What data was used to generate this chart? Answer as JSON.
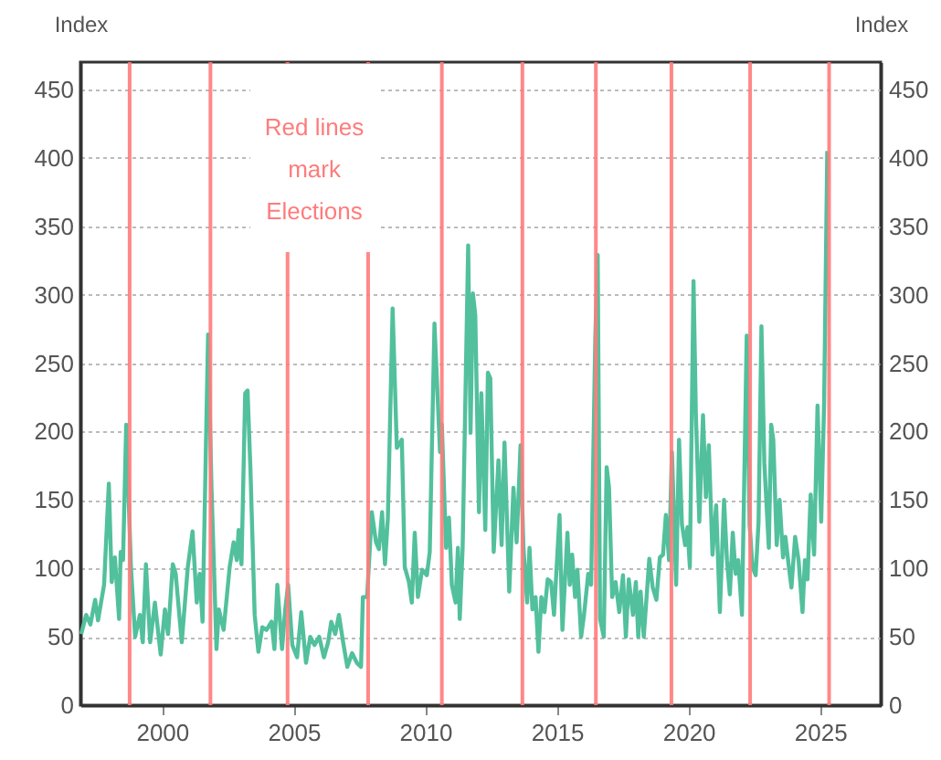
{
  "chart_data": {
    "type": "line",
    "ylabel": "Index",
    "y2label": "Index",
    "annotations": [
      "Red lines\nmark\nElections"
    ],
    "xlim": [
      1996.9,
      2027.3
    ],
    "xticks": [
      2000,
      2005,
      2010,
      2015,
      2020,
      2025
    ],
    "ylim": [
      0,
      470
    ],
    "yticks": [
      0,
      50,
      100,
      150,
      200,
      250,
      300,
      350,
      400,
      450
    ],
    "y2lim": [
      0,
      470
    ],
    "y2ticks": [
      0,
      50,
      100,
      150,
      200,
      250,
      300,
      350,
      400,
      450
    ],
    "grid": "y",
    "ref_lines": [
      {
        "axis": "x",
        "value": 1998.77,
        "color": "#ff7b7b"
      },
      {
        "axis": "x",
        "value": 2001.84,
        "color": "#ff7b7b"
      },
      {
        "axis": "x",
        "value": 2004.77,
        "color": "#ff7b7b"
      },
      {
        "axis": "x",
        "value": 2007.83,
        "color": "#ff7b7b"
      },
      {
        "axis": "x",
        "value": 2010.63,
        "color": "#ff7b7b"
      },
      {
        "axis": "x",
        "value": 2013.69,
        "color": "#ff7b7b"
      },
      {
        "axis": "x",
        "value": 2016.48,
        "color": "#ff7b7b"
      },
      {
        "axis": "x",
        "value": 2019.35,
        "color": "#ff7b7b"
      },
      {
        "axis": "x",
        "value": 2022.34,
        "color": "#ff7b7b"
      },
      {
        "axis": "x",
        "value": 2025.34,
        "color": "#ff7b7b"
      }
    ],
    "series": [
      {
        "color": "#52c09c",
        "x": [
          1996.93,
          1997.12,
          1997.28,
          1997.46,
          1997.57,
          1997.8,
          1997.98,
          1998.09,
          1998.21,
          1998.37,
          1998.43,
          1998.52,
          1998.64,
          1998.82,
          1998.98,
          1999.16,
          1999.27,
          1999.39,
          1999.55,
          1999.73,
          1999.95,
          2000.11,
          2000.23,
          2000.41,
          2000.52,
          2000.75,
          2000.98,
          2001.16,
          2001.32,
          2001.43,
          2001.54,
          2001.75,
          2001.88,
          2002.07,
          2002.16,
          2002.34,
          2002.57,
          2002.72,
          2002.84,
          2002.91,
          2003.02,
          2003.16,
          2003.25,
          2003.36,
          2003.52,
          2003.66,
          2003.81,
          2003.97,
          2004.16,
          2004.27,
          2004.38,
          2004.56,
          2004.68,
          2004.79,
          2004.95,
          2005.13,
          2005.29,
          2005.47,
          2005.63,
          2005.79,
          2005.97,
          2006.15,
          2006.31,
          2006.43,
          2006.58,
          2006.72,
          2006.88,
          2007.04,
          2007.22,
          2007.4,
          2007.56,
          2007.63,
          2007.79,
          2007.97,
          2008.13,
          2008.24,
          2008.36,
          2008.47,
          2008.58,
          2008.76,
          2008.92,
          2009.11,
          2009.22,
          2009.38,
          2009.49,
          2009.6,
          2009.72,
          2009.88,
          2010.06,
          2010.17,
          2010.35,
          2010.56,
          2010.63,
          2010.79,
          2010.9,
          2011.01,
          2011.15,
          2011.24,
          2011.31,
          2011.42,
          2011.63,
          2011.72,
          2011.81,
          2011.9,
          2012.04,
          2012.13,
          2012.28,
          2012.38,
          2012.47,
          2012.6,
          2012.78,
          2012.9,
          2013.01,
          2013.19,
          2013.35,
          2013.47,
          2013.62,
          2013.73,
          2013.87,
          2013.96,
          2014.07,
          2014.19,
          2014.3,
          2014.41,
          2014.53,
          2014.65,
          2014.78,
          2014.89,
          2015.1,
          2015.21,
          2015.4,
          2015.49,
          2015.58,
          2015.69,
          2015.78,
          2015.92,
          2016.03,
          2016.19,
          2016.3,
          2016.46,
          2016.55,
          2016.64,
          2016.78,
          2016.89,
          2016.98,
          2017.1,
          2017.23,
          2017.37,
          2017.51,
          2017.62,
          2017.73,
          2017.89,
          2018.0,
          2018.09,
          2018.18,
          2018.3,
          2018.51,
          2018.64,
          2018.78,
          2018.91,
          2019.03,
          2019.14,
          2019.26,
          2019.37,
          2019.53,
          2019.64,
          2019.75,
          2019.87,
          2019.96,
          2020.05,
          2020.19,
          2020.28,
          2020.41,
          2020.55,
          2020.66,
          2020.77,
          2020.91,
          2021.05,
          2021.19,
          2021.35,
          2021.46,
          2021.57,
          2021.68,
          2021.79,
          2021.89,
          2022.03,
          2022.21,
          2022.32,
          2022.43,
          2022.55,
          2022.66,
          2022.77,
          2022.88,
          2023.05,
          2023.14,
          2023.22,
          2023.35,
          2023.46,
          2023.59,
          2023.68,
          2023.8,
          2023.91,
          2024.05,
          2024.18,
          2024.33,
          2024.42,
          2024.52,
          2024.64,
          2024.77,
          2024.9,
          2025.04,
          2025.15,
          2025.27
        ],
        "values": [
          52,
          66,
          59,
          77,
          62,
          88,
          162,
          90,
          108,
          63,
          112,
          106,
          205,
          101,
          50,
          66,
          46,
          103,
          46,
          75,
          37,
          70,
          52,
          103,
          96,
          46,
          101,
          127,
          75,
          96,
          61,
          271,
          159,
          41,
          70,
          55,
          101,
          119,
          106,
          128,
          103,
          228,
          230,
          172,
          66,
          39,
          57,
          55,
          61,
          41,
          88,
          41,
          70,
          88,
          44,
          35,
          68,
          31,
          50,
          44,
          50,
          35,
          46,
          61,
          52,
          66,
          46,
          28,
          38,
          31,
          28,
          79,
          79,
          141,
          119,
          114,
          141,
          103,
          137,
          290,
          188,
          194,
          101,
          90,
          75,
          126,
          79,
          99,
          95,
          112,
          279,
          185,
          205,
          115,
          137,
          88,
          75,
          115,
          63,
          115,
          336,
          199,
          301,
          285,
          141,
          228,
          128,
          243,
          239,
          112,
          179,
          117,
          192,
          83,
          159,
          119,
          190,
          115,
          75,
          115,
          70,
          79,
          39,
          79,
          68,
          92,
          90,
          66,
          139,
          55,
          126,
          88,
          110,
          79,
          99,
          50,
          66,
          96,
          88,
          270,
          329,
          63,
          50,
          174,
          159,
          79,
          90,
          68,
          95,
          50,
          92,
          66,
          90,
          50,
          83,
          50,
          107,
          86,
          77,
          108,
          110,
          139,
          106,
          185,
          88,
          194,
          132,
          117,
          130,
          101,
          310,
          212,
          134,
          212,
          152,
          190,
          110,
          146,
          68,
          150,
          106,
          81,
          126,
          96,
          106,
          66,
          270,
          132,
          101,
          95,
          134,
          277,
          177,
          115,
          205,
          194,
          117,
          150,
          108,
          123,
          103,
          86,
          123,
          106,
          68,
          106,
          92,
          154,
          110,
          219,
          134,
          220,
          405
        ]
      }
    ]
  }
}
